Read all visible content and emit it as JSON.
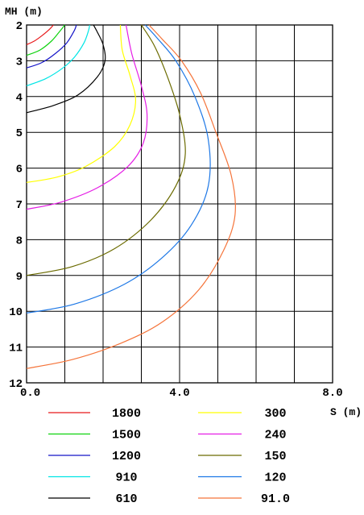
{
  "chart_data": {
    "type": "line",
    "xlabel": "S (m)",
    "ylabel": "MH (m)",
    "xlim": [
      0,
      8
    ],
    "ylim": [
      2,
      12
    ],
    "y_inverted": true,
    "x_ticks": [
      0,
      2,
      4,
      6,
      8
    ],
    "x_tick_labels": [
      "0.0",
      "4.0",
      "8.0"
    ],
    "x_tick_label_positions": [
      0,
      4,
      8
    ],
    "y_ticks": [
      2,
      3,
      4,
      5,
      6,
      7,
      8,
      9,
      10,
      11,
      12
    ],
    "y_tick_labels": [
      "2",
      "3",
      "4",
      "5",
      "6",
      "7",
      "8",
      "9",
      "10",
      "11",
      "12"
    ],
    "grid": true,
    "grid_x_step": 1,
    "legend_position": "bottom",
    "series": [
      {
        "name": "1800",
        "color": "#e8191b",
        "x": [
          0.0,
          0.2,
          0.4,
          0.6,
          0.7
        ],
        "y": [
          2.55,
          2.45,
          2.3,
          2.12,
          2.0
        ]
      },
      {
        "name": "1500",
        "color": "#0fd30f",
        "x": [
          0.0,
          0.35,
          0.65,
          0.85,
          1.0
        ],
        "y": [
          2.85,
          2.7,
          2.45,
          2.2,
          2.0
        ]
      },
      {
        "name": "1200",
        "color": "#1515c8",
        "x": [
          0.0,
          0.4,
          0.75,
          1.05,
          1.25,
          1.3
        ],
        "y": [
          3.2,
          3.05,
          2.8,
          2.5,
          2.15,
          2.0
        ]
      },
      {
        "name": "910",
        "color": "#00e5e5",
        "x": [
          0.0,
          0.5,
          0.95,
          1.25,
          1.5,
          1.62,
          1.65
        ],
        "y": [
          3.7,
          3.5,
          3.2,
          2.9,
          2.5,
          2.15,
          2.0
        ]
      },
      {
        "name": "610",
        "color": "#000000",
        "x": [
          0.0,
          0.7,
          1.35,
          1.85,
          2.05,
          2.0,
          1.85,
          1.75
        ],
        "y": [
          4.45,
          4.25,
          3.95,
          3.45,
          3.0,
          2.55,
          2.2,
          2.0
        ]
      },
      {
        "name": "300",
        "color": "#ffff00",
        "x": [
          0.0,
          0.8,
          1.55,
          2.3,
          2.7,
          2.85,
          2.7,
          2.5,
          2.45
        ],
        "y": [
          6.4,
          6.25,
          5.95,
          5.4,
          4.8,
          4.1,
          3.4,
          2.7,
          2.0
        ]
      },
      {
        "name": "240",
        "color": "#e51de5",
        "x": [
          0.0,
          0.9,
          1.85,
          2.65,
          3.05,
          3.15,
          3.0,
          2.75,
          2.6
        ],
        "y": [
          7.15,
          6.95,
          6.55,
          5.95,
          5.3,
          4.5,
          3.7,
          2.8,
          2.0
        ]
      },
      {
        "name": "150",
        "color": "#6b6b00",
        "x": [
          0.0,
          1.2,
          2.3,
          3.25,
          3.9,
          4.15,
          4.0,
          3.7,
          3.35,
          3.0
        ],
        "y": [
          9.0,
          8.75,
          8.25,
          7.45,
          6.5,
          5.6,
          4.5,
          3.5,
          2.6,
          2.0
        ]
      },
      {
        "name": "120",
        "color": "#1e78e6",
        "x": [
          0.0,
          1.25,
          2.55,
          3.55,
          4.3,
          4.75,
          4.75,
          4.4,
          3.9,
          3.4,
          3.1
        ],
        "y": [
          10.05,
          9.8,
          9.25,
          8.5,
          7.6,
          6.5,
          5.2,
          4.0,
          3.0,
          2.35,
          2.0
        ]
      },
      {
        "name": "91.0",
        "color": "#f5743a",
        "x": [
          0.0,
          1.2,
          2.45,
          3.55,
          4.5,
          5.15,
          5.45,
          5.35,
          4.95,
          4.55,
          4.05,
          3.55,
          3.2
        ],
        "y": [
          11.6,
          11.35,
          10.9,
          10.3,
          9.4,
          8.3,
          7.3,
          6.2,
          5.0,
          3.9,
          3.0,
          2.4,
          2.0
        ]
      }
    ]
  }
}
